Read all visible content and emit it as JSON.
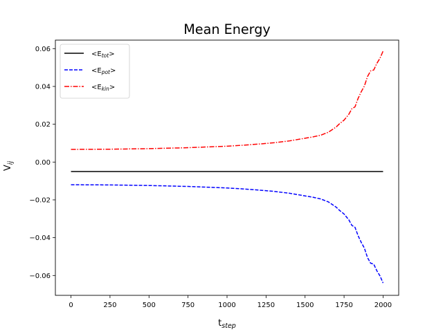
{
  "chart_data": {
    "type": "line",
    "title": "Mean Energy",
    "xlabel": {
      "base": "t",
      "sub": "step"
    },
    "ylabel": {
      "base": "V",
      "sub": "ij"
    },
    "xlim": [
      -100,
      2100
    ],
    "ylim": [
      -0.0705,
      0.0645
    ],
    "xticks": [
      0,
      250,
      500,
      750,
      1000,
      1250,
      1500,
      1750,
      2000
    ],
    "xtick_labels": [
      "0",
      "250",
      "500",
      "750",
      "1000",
      "1250",
      "1500",
      "1750",
      "2000"
    ],
    "yticks": [
      -0.06,
      -0.04,
      -0.02,
      0.0,
      0.02,
      0.04,
      0.06
    ],
    "ytick_labels": [
      "−0.06",
      "−0.04",
      "−0.02",
      "0.00",
      "0.02",
      "0.04",
      "0.06"
    ],
    "grid": false,
    "legend_position": "top-left",
    "series": [
      {
        "key": "tot",
        "label": {
          "pre": "<E",
          "sub": "tot",
          "post": ">"
        },
        "color": "#000000",
        "dash": "solid",
        "x": [
          0,
          2000
        ],
        "y": [
          -0.005,
          -0.005
        ]
      },
      {
        "key": "pot",
        "label": {
          "pre": "<E",
          "sub": "pot",
          "post": ">"
        },
        "color": "#0000ff",
        "dash": "dashed",
        "x": [
          0,
          250,
          500,
          750,
          1000,
          1100,
          1200,
          1300,
          1400,
          1500,
          1550,
          1600,
          1650,
          1700,
          1720,
          1750,
          1780,
          1800,
          1820,
          1840,
          1860,
          1880,
          1900,
          1920,
          1940,
          1960,
          1980,
          2000
        ],
        "y": [
          -0.012,
          -0.0121,
          -0.0124,
          -0.0129,
          -0.0137,
          -0.0142,
          -0.0148,
          -0.0155,
          -0.0165,
          -0.0179,
          -0.0186,
          -0.0195,
          -0.0211,
          -0.0239,
          -0.0255,
          -0.0275,
          -0.0305,
          -0.0335,
          -0.0345,
          -0.039,
          -0.0425,
          -0.0455,
          -0.0505,
          -0.0535,
          -0.054,
          -0.0575,
          -0.0602,
          -0.064
        ]
      },
      {
        "key": "kin",
        "label": {
          "pre": "<E",
          "sub": "kin",
          "post": ">"
        },
        "color": "#ff0000",
        "dash": "dashdot",
        "x": [
          0,
          250,
          500,
          750,
          1000,
          1100,
          1200,
          1300,
          1400,
          1500,
          1550,
          1600,
          1650,
          1700,
          1720,
          1750,
          1780,
          1800,
          1820,
          1840,
          1860,
          1880,
          1900,
          1920,
          1940,
          1960,
          1980,
          2000
        ],
        "y": [
          0.0067,
          0.0068,
          0.0071,
          0.0076,
          0.0084,
          0.0089,
          0.0095,
          0.0102,
          0.0112,
          0.0126,
          0.0133,
          0.0142,
          0.0158,
          0.0186,
          0.0202,
          0.0222,
          0.0252,
          0.0282,
          0.0292,
          0.0337,
          0.0372,
          0.0402,
          0.0452,
          0.0482,
          0.0487,
          0.0522,
          0.0549,
          0.0587
        ]
      }
    ]
  }
}
